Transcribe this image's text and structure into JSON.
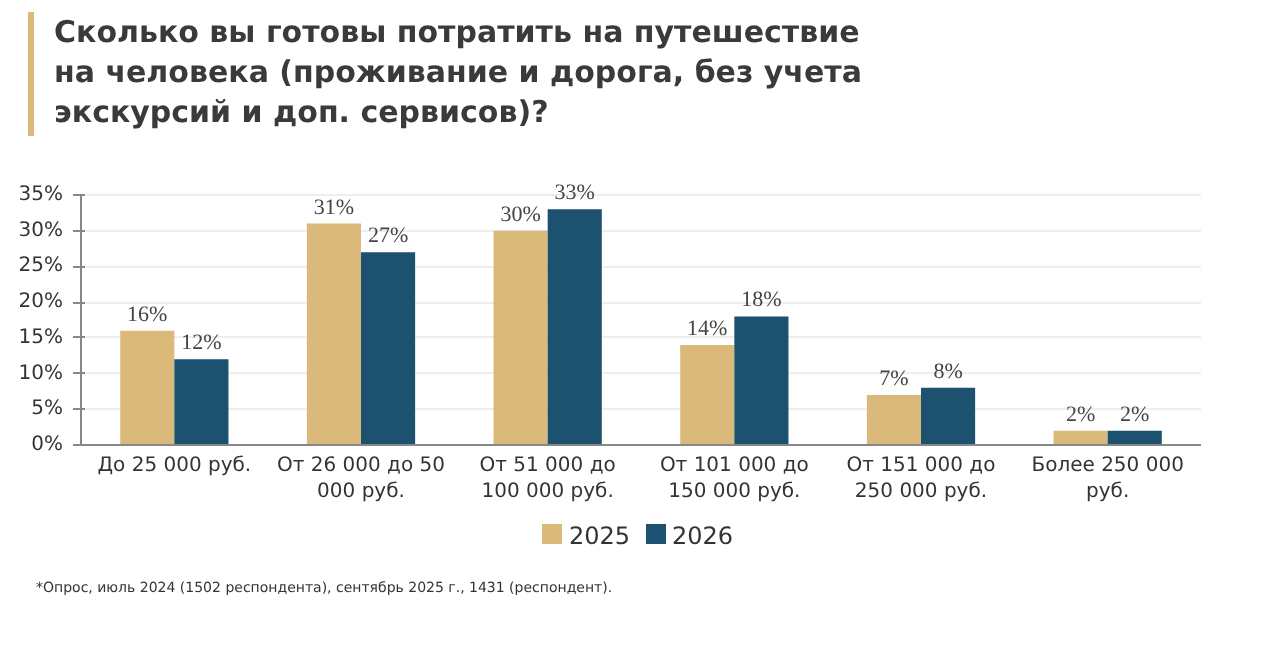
{
  "chart_data": {
    "type": "bar",
    "title": "Сколько вы готовы потратить на путешествие на человека (проживание и дорога, без учета экскурсий и доп. сервисов)?",
    "categories": [
      "До 25 000 руб.",
      "От 26 000 до 50 000 руб.",
      "От 51 000 до 100 000 руб.",
      "От 101 000 до 150 000 руб.",
      "От 151 000 до 250 000 руб.",
      "Более 250 000 руб."
    ],
    "series": [
      {
        "name": "2025",
        "color": "#dbb97b",
        "values": [
          16,
          31,
          30,
          14,
          7,
          2
        ]
      },
      {
        "name": "2026",
        "color": "#1d5170",
        "values": [
          12,
          27,
          33,
          18,
          8,
          2
        ]
      }
    ],
    "ylim": [
      0,
      35
    ],
    "yticks": [
      {
        "value": 0,
        "label": "0%"
      },
      {
        "value": 5,
        "label": "5%"
      },
      {
        "value": 10,
        "label": "10%"
      },
      {
        "value": 15,
        "label": "15%"
      },
      {
        "value": 20,
        "label": "20%"
      },
      {
        "value": 25,
        "label": "25%"
      },
      {
        "value": 30,
        "label": "30%"
      },
      {
        "value": 35,
        "label": "35%"
      }
    ],
    "value_labels": [
      [
        "16%",
        "31%",
        "30%",
        "14%",
        "7%",
        "2%"
      ],
      [
        "12%",
        "27%",
        "33%",
        "18%",
        "8%",
        "2%"
      ]
    ],
    "grid": "y",
    "legend": "bottom",
    "annotations": [
      "*Опрос, июль 2024 (1502 респондента), сентябрь 2025 г., 1431 (респондент)."
    ]
  }
}
